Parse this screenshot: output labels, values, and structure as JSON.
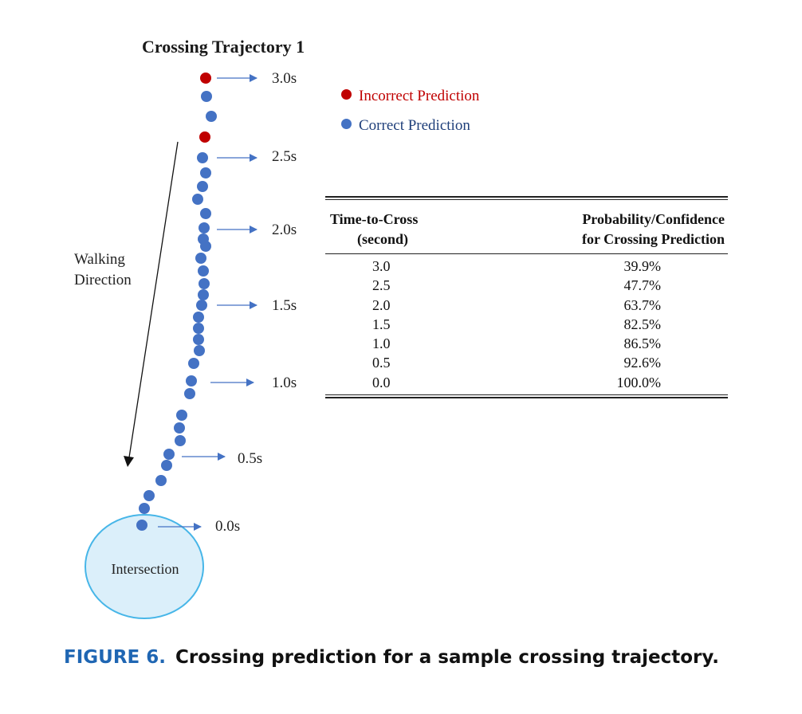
{
  "figure_title": "Crossing Trajectory 1",
  "walking_direction_label": [
    "Walking",
    "Direction"
  ],
  "legend": {
    "incorrect": {
      "label": "Incorrect Prediction",
      "color": "#c00000"
    },
    "correct": {
      "label": "Correct Prediction",
      "color": "#4472c4"
    }
  },
  "time_markers": [
    "3.0s",
    "2.5s",
    "2.0s",
    "1.5s",
    "1.0s",
    "0.5s",
    "0.0s"
  ],
  "intersection_label": "Intersection",
  "colors": {
    "dot_blue": "#4472c4",
    "dot_red": "#c00000",
    "arrow": "#4472c4",
    "circle_fill": "#dbeffa",
    "circle_stroke": "#47b6e8",
    "caption_accent": "#1f66b3"
  },
  "table": {
    "headers": [
      [
        "Time-to-Cross",
        "(second)"
      ],
      [
        "Probability/Confidence",
        "for Crossing Prediction"
      ]
    ],
    "rows": [
      [
        "3.0",
        "39.9%"
      ],
      [
        "2.5",
        "47.7%"
      ],
      [
        "2.0",
        "63.7%"
      ],
      [
        "1.5",
        "82.5%"
      ],
      [
        "1.0",
        "86.5%"
      ],
      [
        "0.5",
        "92.6%"
      ],
      [
        "0.0",
        "100.0%"
      ]
    ]
  },
  "caption": {
    "number": "FIGURE 6.",
    "text": "Crossing prediction for a sample crossing trajectory."
  }
}
